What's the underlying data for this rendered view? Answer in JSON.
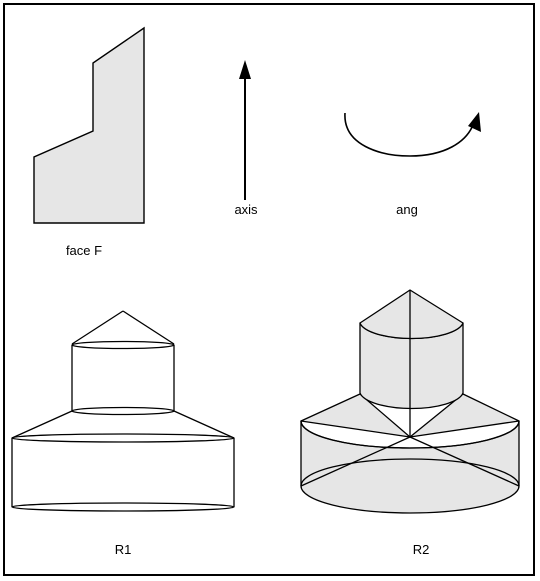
{
  "labels": {
    "face": "face F",
    "axis": "axis",
    "angle": "ang",
    "result1": "R1",
    "result2": "R2"
  },
  "colors": {
    "fill": "#e6e6e6",
    "stroke": "#000000",
    "background": "#ffffff"
  }
}
